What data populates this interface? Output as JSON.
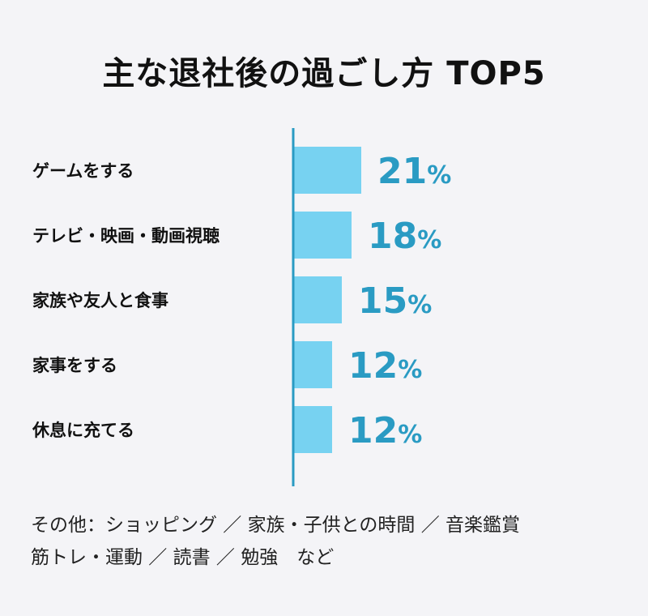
{
  "title": "主な退社後の過ごし方 TOP5",
  "chart_data": {
    "type": "bar",
    "orientation": "horizontal",
    "title": "主な退社後の過ごし方 TOP5",
    "categories": [
      "ゲームをする",
      "テレビ・映画・動画視聴",
      "家族や友人と食事",
      "家事をする",
      "休息に充てる"
    ],
    "values": [
      21,
      18,
      15,
      12,
      12
    ],
    "unit": "%",
    "xlim": [
      0,
      100
    ],
    "grid": false,
    "bar_color": "#77d2f1",
    "axis_color": "#2a9bc3",
    "label_color": "#2a9bc3"
  },
  "notes": {
    "line1": "その他：ショッピング ／ 家族・子供との時間 ／ 音楽鑑賞",
    "line2": "筋トレ・運動 ／ 読書 ／ 勉強　など"
  }
}
